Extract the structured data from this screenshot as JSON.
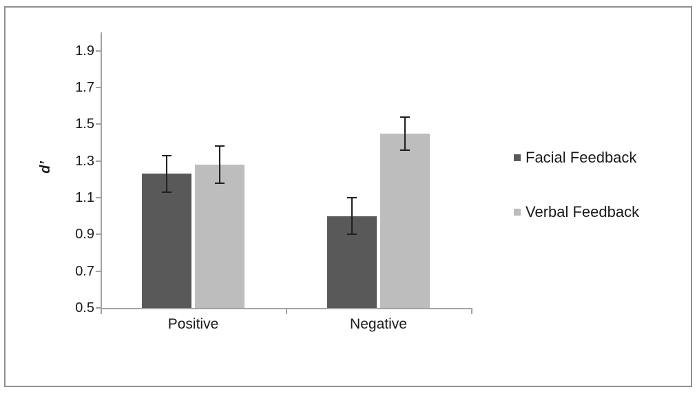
{
  "chart_data": {
    "type": "bar",
    "categories": [
      "Positive",
      "Negative"
    ],
    "series": [
      {
        "name": "Facial Feedback",
        "color": "#595959",
        "values": [
          1.23,
          1.0
        ],
        "errors": [
          0.1,
          0.1
        ]
      },
      {
        "name": "Verbal Feedback",
        "color": "#bdbdbd",
        "values": [
          1.28,
          1.45
        ],
        "errors": [
          0.1,
          0.09
        ]
      }
    ],
    "title": "",
    "xlabel": "",
    "ylabel": "d’",
    "ylim": [
      0.5,
      2.0
    ],
    "yticks": [
      0.5,
      0.7,
      0.9,
      1.1,
      1.3,
      1.5,
      1.7,
      1.9
    ],
    "grid": false,
    "legend_position": "right",
    "error_bar_color": "#1f1f1f",
    "axis_color": "#a3a3a3"
  }
}
